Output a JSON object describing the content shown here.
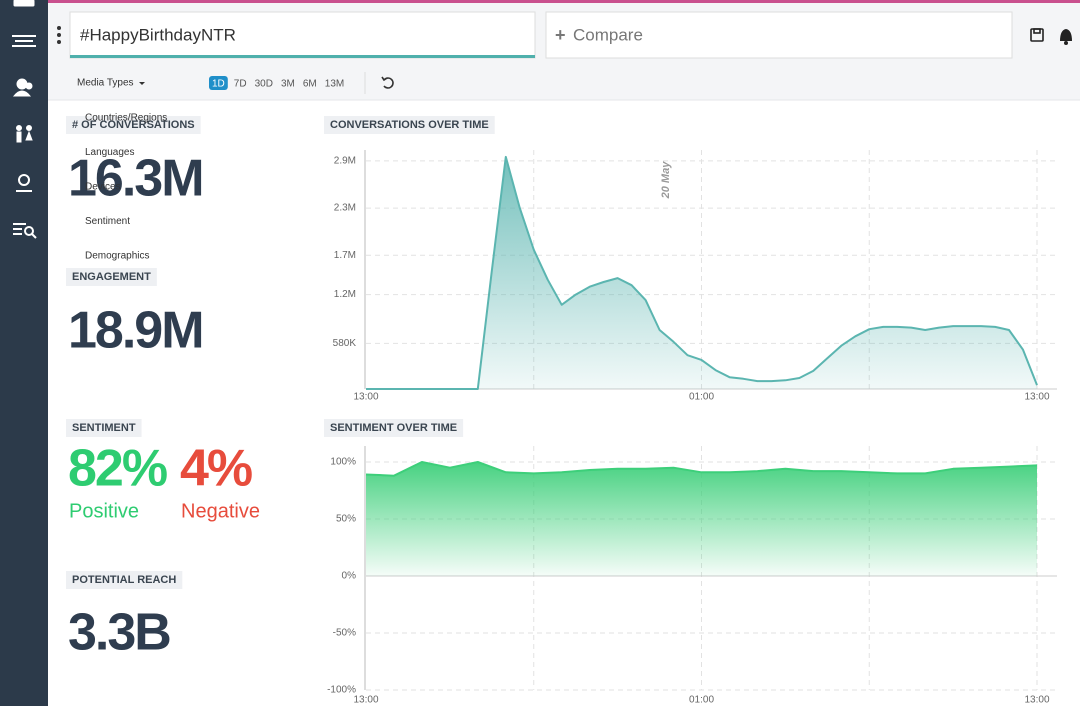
{
  "header": {
    "search": "#HappyBirthdayNTR",
    "compare": "Compare"
  },
  "toolbar": {
    "media_types": "Media Types",
    "ranges": [
      "1D",
      "7D",
      "30D",
      "3M",
      "6M",
      "13M"
    ]
  },
  "menu": [
    "Countries/Regions",
    "Languages",
    "Devices",
    "Sentiment",
    "Demographics"
  ],
  "metrics": {
    "conversations": {
      "label": "# OF CONVERSATIONS",
      "value": "16.3M"
    },
    "engagement": {
      "label": "ENGAGEMENT",
      "value": "18.9M"
    },
    "sentiment": {
      "label": "SENTIMENT",
      "positive": "82%",
      "positive_label": "Positive",
      "negative": "4%",
      "negative_label": "Negative"
    },
    "reach": {
      "label": "POTENTIAL REACH",
      "value": "3.3B"
    }
  },
  "chart_data": [
    {
      "type": "area",
      "title": "CONVERSATIONS OVER TIME",
      "annotation": "20 May",
      "color": "#5bb5b0",
      "grid": true,
      "categories": [
        "13:00",
        null,
        null,
        null,
        null,
        null,
        null,
        null,
        null,
        null,
        null,
        null,
        null,
        null,
        null,
        null,
        null,
        null,
        null,
        null,
        null,
        null,
        null,
        null,
        "01:00",
        null,
        null,
        null,
        null,
        null,
        null,
        null,
        null,
        null,
        null,
        null,
        null,
        null,
        null,
        null,
        null,
        null,
        null,
        null,
        null,
        null,
        null,
        null,
        "13:00"
      ],
      "values": [
        0,
        0,
        0,
        0,
        0,
        0,
        0,
        0,
        0,
        1500000,
        2950000,
        2300000,
        1770000,
        1390000,
        1070000,
        1200000,
        1300000,
        1360000,
        1410000,
        1320000,
        1130000,
        750000,
        600000,
        430000,
        370000,
        240000,
        150000,
        130000,
        100000,
        100000,
        110000,
        140000,
        230000,
        390000,
        550000,
        670000,
        760000,
        790000,
        790000,
        780000,
        750000,
        780000,
        800000,
        800000,
        800000,
        790000,
        750000,
        500000,
        50000
      ],
      "ylim": [
        0,
        3000000
      ],
      "yticks": [
        {
          "value": 580000,
          "label": "580K"
        },
        {
          "value": 1200000,
          "label": "1.2M"
        },
        {
          "value": 1700000,
          "label": "1.7M"
        },
        {
          "value": 2300000,
          "label": "2.3M"
        },
        {
          "value": 2900000,
          "label": "2.9M"
        }
      ]
    },
    {
      "type": "area",
      "title": "SENTIMENT OVER TIME",
      "color": "#3dcf7a",
      "grid": true,
      "categories": [
        "13:00",
        null,
        null,
        null,
        null,
        null,
        null,
        null,
        null,
        null,
        null,
        null,
        "01:00",
        null,
        null,
        null,
        null,
        null,
        null,
        null,
        null,
        null,
        null,
        null,
        "13:00"
      ],
      "values": [
        89,
        88,
        100,
        95,
        100,
        91,
        90,
        91,
        93,
        94,
        94,
        95,
        91,
        91,
        92,
        94,
        92,
        92,
        91,
        90,
        90,
        94,
        95,
        96,
        97
      ],
      "ylim": [
        -100,
        100
      ],
      "yticks": [
        {
          "value": -100,
          "label": "-100%"
        },
        {
          "value": -50,
          "label": "-50%"
        },
        {
          "value": 0,
          "label": "0%"
        },
        {
          "value": 50,
          "label": "50%"
        },
        {
          "value": 100,
          "label": "100%"
        }
      ]
    }
  ]
}
